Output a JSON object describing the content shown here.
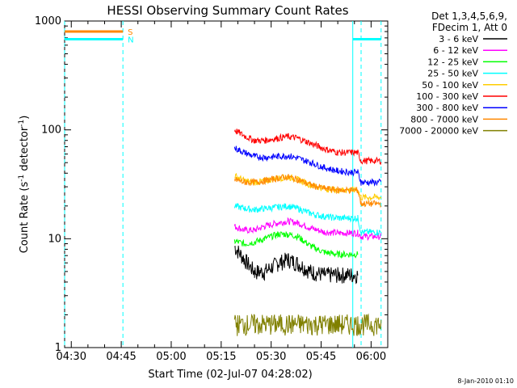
{
  "chart_data": {
    "type": "line",
    "title": "HESSI Observing Summary Count Rates",
    "xlabel": "Start Time (02-Jul-07 04:28:02)",
    "ylabel_main": "Count Rate (s",
    "ylabel_sup1": "-1",
    "ylabel_mid": " detector",
    "ylabel_sup2": "-1",
    "ylabel_end": ")",
    "y_scale": "log",
    "ylim": [
      1,
      1000
    ],
    "xlim_minutes_after_0430": [
      -2,
      95
    ],
    "x_ticks": [
      "04:30",
      "04:45",
      "05:00",
      "05:15",
      "05:30",
      "05:45",
      "06:00"
    ],
    "y_ticks": [
      "1",
      "10",
      "100",
      "1000"
    ],
    "legend_header": [
      "Det 1,3,4,5,6,9,",
      "FDecim 1, Att 0"
    ],
    "legend_position": "right",
    "series": [
      {
        "name": "3 - 6 keV",
        "color": "#000000",
        "points": [
          [
            49,
            8.5
          ],
          [
            52,
            6.5
          ],
          [
            55,
            5
          ],
          [
            58,
            5
          ],
          [
            62,
            6
          ],
          [
            65,
            6.5
          ],
          [
            68,
            6
          ],
          [
            72,
            5
          ],
          [
            76,
            4.7
          ],
          [
            80,
            4.7
          ],
          [
            84,
            4.7
          ],
          [
            86,
            4.7
          ]
        ]
      },
      {
        "name": "6 - 12 keV",
        "color": "#ff00ff",
        "points": [
          [
            49,
            13
          ],
          [
            52,
            12
          ],
          [
            55,
            12
          ],
          [
            58,
            13
          ],
          [
            62,
            14
          ],
          [
            65,
            14.5
          ],
          [
            68,
            14
          ],
          [
            72,
            12.5
          ],
          [
            76,
            11.5
          ],
          [
            80,
            11.3
          ],
          [
            84,
            11.3
          ],
          [
            86,
            11.3
          ],
          [
            87,
            10.5
          ],
          [
            93,
            10.5
          ]
        ]
      },
      {
        "name": "12 - 25 keV",
        "color": "#00ff00",
        "points": [
          [
            49,
            9.5
          ],
          [
            52,
            9
          ],
          [
            55,
            9.3
          ],
          [
            58,
            10
          ],
          [
            62,
            11
          ],
          [
            65,
            11
          ],
          [
            68,
            10.5
          ],
          [
            72,
            8.5
          ],
          [
            76,
            7.5
          ],
          [
            80,
            7.2
          ],
          [
            84,
            7.2
          ],
          [
            86,
            7.2
          ]
        ]
      },
      {
        "name": "25 - 50 keV",
        "color": "#00ffff",
        "points": [
          [
            49,
            20
          ],
          [
            52,
            19
          ],
          [
            55,
            18.5
          ],
          [
            58,
            19
          ],
          [
            62,
            19.5
          ],
          [
            65,
            20
          ],
          [
            68,
            19
          ],
          [
            72,
            17
          ],
          [
            76,
            16
          ],
          [
            80,
            15.5
          ],
          [
            84,
            15.5
          ],
          [
            86,
            15.5
          ],
          [
            87,
            11.5
          ],
          [
            93,
            11.5
          ]
        ]
      },
      {
        "name": "50 - 100 keV",
        "color": "#ffcc00",
        "points": [
          [
            49,
            38
          ],
          [
            52,
            34
          ],
          [
            55,
            33
          ],
          [
            58,
            34
          ],
          [
            62,
            36
          ],
          [
            65,
            37
          ],
          [
            68,
            35
          ],
          [
            72,
            31
          ],
          [
            76,
            29
          ],
          [
            80,
            28
          ],
          [
            84,
            28
          ],
          [
            86,
            28
          ],
          [
            87,
            24
          ],
          [
            93,
            24
          ]
        ]
      },
      {
        "name": "100 - 300 keV",
        "color": "#ff0000",
        "points": [
          [
            49,
            100
          ],
          [
            52,
            88
          ],
          [
            55,
            80
          ],
          [
            58,
            80
          ],
          [
            62,
            84
          ],
          [
            65,
            87
          ],
          [
            68,
            84
          ],
          [
            72,
            75
          ],
          [
            76,
            67
          ],
          [
            80,
            62
          ],
          [
            84,
            62
          ],
          [
            86,
            62
          ],
          [
            87,
            52
          ],
          [
            93,
            52
          ]
        ]
      },
      {
        "name": "300 - 800 keV",
        "color": "#0000ff",
        "points": [
          [
            49,
            68
          ],
          [
            52,
            62
          ],
          [
            55,
            57
          ],
          [
            58,
            56
          ],
          [
            62,
            57
          ],
          [
            65,
            58
          ],
          [
            68,
            55
          ],
          [
            72,
            50
          ],
          [
            76,
            45
          ],
          [
            80,
            42
          ],
          [
            84,
            41
          ],
          [
            86,
            41
          ],
          [
            87,
            33
          ],
          [
            93,
            33
          ]
        ]
      },
      {
        "name": "800 - 7000 keV",
        "color": "#ff8800",
        "points": [
          [
            49,
            35
          ],
          [
            52,
            33
          ],
          [
            55,
            33
          ],
          [
            58,
            34
          ],
          [
            62,
            36
          ],
          [
            65,
            37
          ],
          [
            68,
            35
          ],
          [
            72,
            31
          ],
          [
            76,
            29
          ],
          [
            80,
            28
          ],
          [
            84,
            28
          ],
          [
            86,
            28
          ],
          [
            87,
            21
          ],
          [
            93,
            21
          ]
        ]
      },
      {
        "name": "7000 - 20000 keV",
        "color": "#808000",
        "points": [
          [
            49,
            1.5
          ],
          [
            60,
            1.5
          ],
          [
            75,
            1.5
          ],
          [
            86,
            1.5
          ],
          [
            87,
            1.5
          ],
          [
            93,
            1.5
          ]
        ]
      }
    ],
    "annotations": {
      "S": {
        "label": "S",
        "color": "#ff8800",
        "value": 800
      },
      "N": {
        "label": "N",
        "color": "#00ffff",
        "value": 680
      }
    },
    "timestamp": "8-Jan-2010 01:10"
  }
}
